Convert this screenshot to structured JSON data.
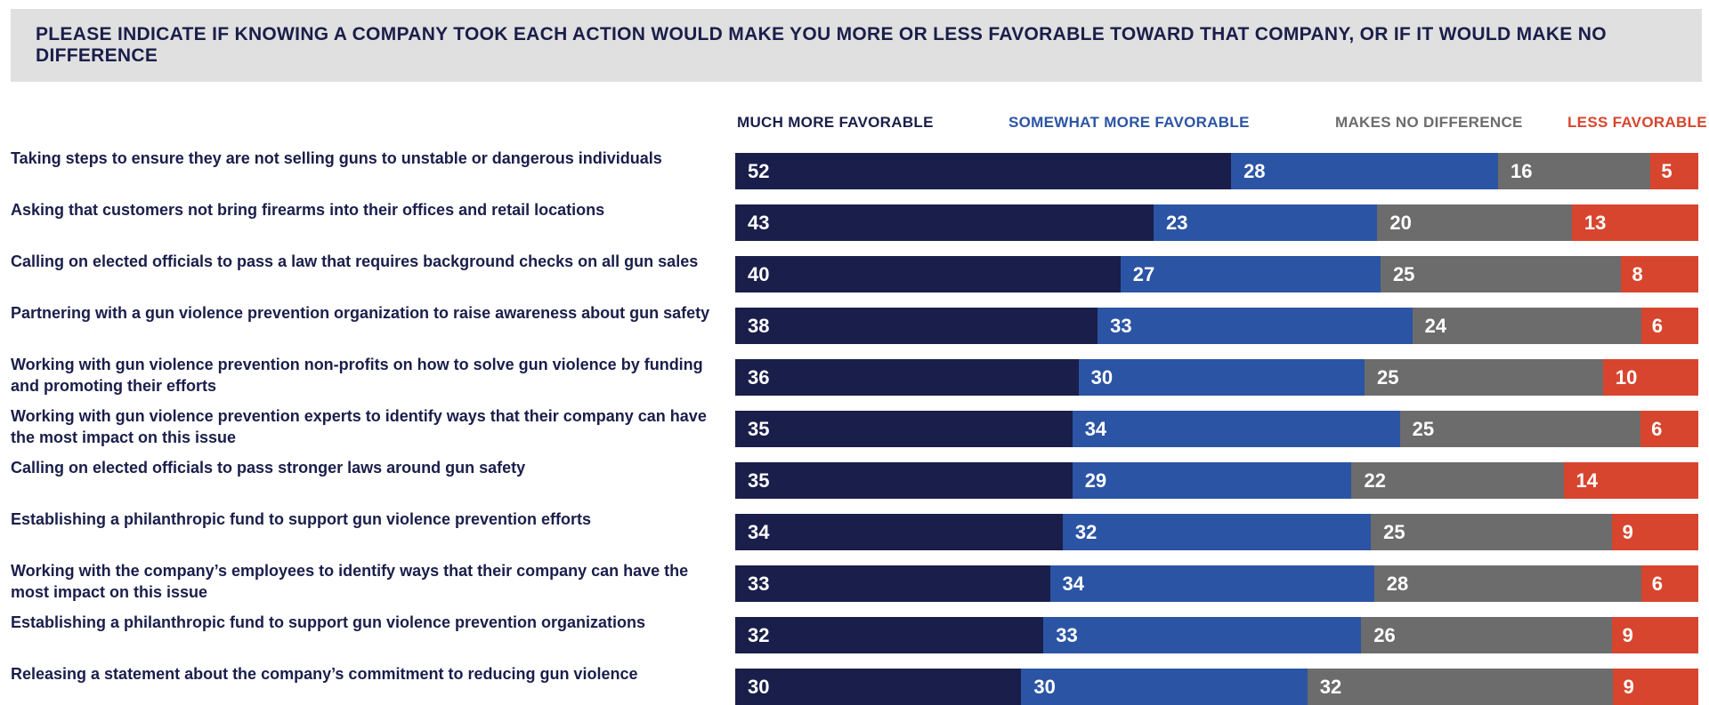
{
  "chart_data": {
    "type": "bar",
    "orientation": "horizontal",
    "stacked": true,
    "title": "PLEASE INDICATE IF KNOWING A COMPANY TOOK EACH ACTION WOULD MAKE YOU MORE OR LESS FAVORABLE TOWARD THAT COMPANY, OR IF IT WOULD MAKE NO DIFFERENCE",
    "legend_position": "top",
    "grid": false,
    "categories": [
      "Taking steps to ensure they are not selling guns to unstable or dangerous individuals",
      "Asking that customers not bring firearms into their offices and retail locations",
      "Calling on elected officials to pass a law that requires background checks on all gun sales",
      "Partnering with a gun violence prevention organization to raise awareness about gun safety",
      "Working with gun violence prevention non-profits on how to solve gun violence by funding and promoting their efforts",
      "Working with gun violence prevention experts to identify ways that their company can have the most impact on this issue",
      "Calling on elected officials to pass stronger laws around gun safety",
      "Establishing a philanthropic fund to support gun violence prevention efforts",
      "Working with the company’s employees to identify ways that their company can have the most impact on this issue",
      "Establishing a philanthropic fund to support gun violence prevention organizations",
      "Releasing a statement about the company’s commitment to reducing gun violence"
    ],
    "series": [
      {
        "name": "MUCH MORE FAVORABLE",
        "color": "#1a1e4a",
        "values": [
          52,
          43,
          40,
          38,
          36,
          35,
          35,
          34,
          33,
          32,
          30
        ]
      },
      {
        "name": "SOMEWHAT MORE FAVORABLE",
        "color": "#2b54a4",
        "values": [
          28,
          23,
          27,
          33,
          30,
          34,
          29,
          32,
          34,
          33,
          30
        ]
      },
      {
        "name": "MAKES NO DIFFERENCE",
        "color": "#6c6c6c",
        "values": [
          16,
          20,
          25,
          24,
          25,
          25,
          22,
          25,
          28,
          26,
          32
        ]
      },
      {
        "name": "LESS FAVORABLE",
        "color": "#d8452e",
        "values": [
          5,
          13,
          8,
          6,
          10,
          6,
          14,
          9,
          6,
          9,
          9
        ]
      }
    ]
  }
}
